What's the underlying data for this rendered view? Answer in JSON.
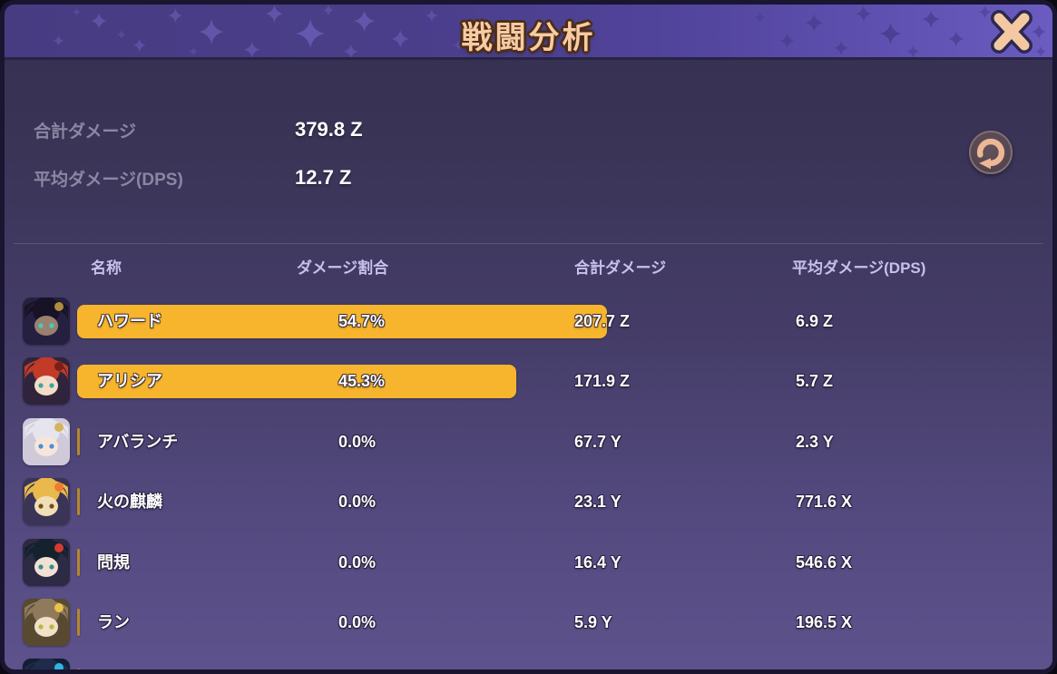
{
  "window": {
    "title": "戦闘分析"
  },
  "icons": {
    "close": "✕",
    "refresh": "↺"
  },
  "colors": {
    "accent_bar": "#f7b52d",
    "accent_bar_zero": "#b5872c",
    "title_text": "#f8cba3",
    "header_text": "#c9c0ee",
    "label_muted": "#8d86a3",
    "titlebar_purple": "#4a3e8a"
  },
  "summary": {
    "rows": [
      {
        "label": "合計ダメージ",
        "value": "379.8 Z"
      },
      {
        "label": "平均ダメージ(DPS)",
        "value": "12.7 Z"
      }
    ]
  },
  "table": {
    "columns": [
      "名称",
      "ダメージ割合",
      "合計ダメージ",
      "平均ダメージ(DPS)"
    ],
    "rows": [
      {
        "name": "ハワード",
        "pct": 54.7,
        "pct_label": "54.7%",
        "total": "207.7 Z",
        "dps": "6.9 Z",
        "avatar": {
          "bg": "#262040",
          "hair": "#171226",
          "accent": "#b08d3e",
          "skin": "#9b8070",
          "eyes": "#38d4b4"
        }
      },
      {
        "name": "アリシア",
        "pct": 45.3,
        "pct_label": "45.3%",
        "total": "171.9 Z",
        "dps": "5.7 Z",
        "avatar": {
          "bg": "#30243c",
          "hair": "#c23a28",
          "accent": "#7a1f18",
          "skin": "#f3dcc8",
          "eyes": "#3aa79b"
        }
      },
      {
        "name": "アバランチ",
        "pct": 0.0,
        "pct_label": "0.0%",
        "total": "67.7 Y",
        "dps": "2.3 Y",
        "avatar": {
          "bg": "#cfc9da",
          "hair": "#e6e4ec",
          "accent": "#d4b35a",
          "skin": "#f6e6da",
          "eyes": "#4a8fd4"
        }
      },
      {
        "name": "火の麒麟",
        "pct": 0.0,
        "pct_label": "0.0%",
        "total": "23.1 Y",
        "dps": "771.6 X",
        "avatar": {
          "bg": "#3a3456",
          "hair": "#e9b94d",
          "accent": "#f07a2a",
          "skin": "#f0dfb6",
          "eyes": "#7a4a1e"
        }
      },
      {
        "name": "問規",
        "pct": 0.0,
        "pct_label": "0.0%",
        "total": "16.4 Y",
        "dps": "546.6 X",
        "avatar": {
          "bg": "#2c2a44",
          "hair": "#14222e",
          "accent": "#d83a30",
          "skin": "#f2e0d2",
          "eyes": "#2e8f96"
        }
      },
      {
        "name": "ラン",
        "pct": 0.0,
        "pct_label": "0.0%",
        "total": "5.9 Y",
        "dps": "196.5 X",
        "avatar": {
          "bg": "#574a30",
          "hair": "#8f7a5c",
          "accent": "#ecc34a",
          "skin": "#f4dfc9",
          "eyes": "#aebc3e"
        }
      },
      {
        "name": "",
        "pct": 0.0,
        "pct_label": "",
        "total": "",
        "dps": "",
        "avatar": {
          "bg": "#141d33",
          "hair": "#1d2c4a",
          "accent": "#2fb3e8",
          "skin": "#0f1830",
          "eyes": "#39c8f2"
        }
      }
    ]
  }
}
